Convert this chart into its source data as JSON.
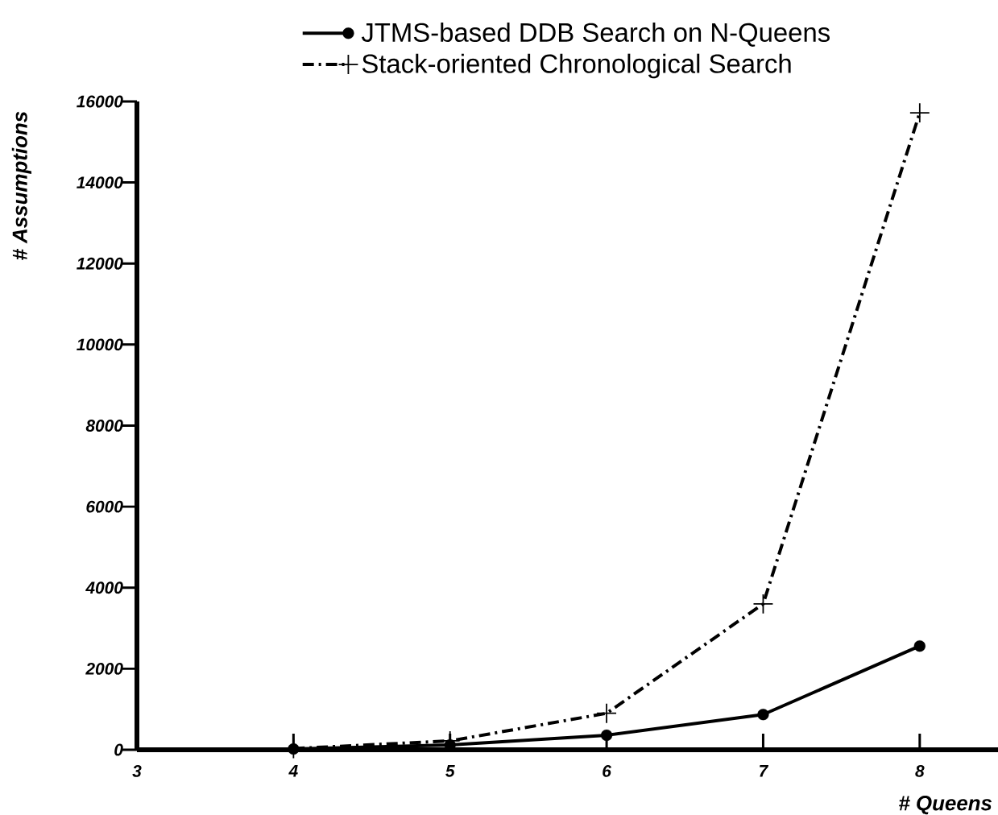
{
  "chart_data": {
    "type": "line",
    "xlabel": "# Queens",
    "ylabel": "# Assumptions",
    "x": [
      4,
      5,
      6,
      7,
      8
    ],
    "series": [
      {
        "name": "JTMS-based DDB Search on N-Queens",
        "color": "#000000",
        "marker": "circle",
        "line_style": "solid",
        "values": [
          20,
          120,
          360,
          870,
          2560
        ]
      },
      {
        "name": "Stack-oriented Chronological Search",
        "color": "#000000",
        "marker": "cross",
        "line_style": "dashdot",
        "values": [
          30,
          220,
          900,
          3600,
          15720
        ]
      }
    ],
    "xlim": [
      3,
      8.5
    ],
    "xticks": [
      3,
      4,
      5,
      6,
      7,
      8
    ],
    "ylim": [
      0,
      16000
    ],
    "yticks": [
      0,
      2000,
      4000,
      6000,
      8000,
      10000,
      12000,
      14000,
      16000
    ],
    "legend": "top"
  }
}
